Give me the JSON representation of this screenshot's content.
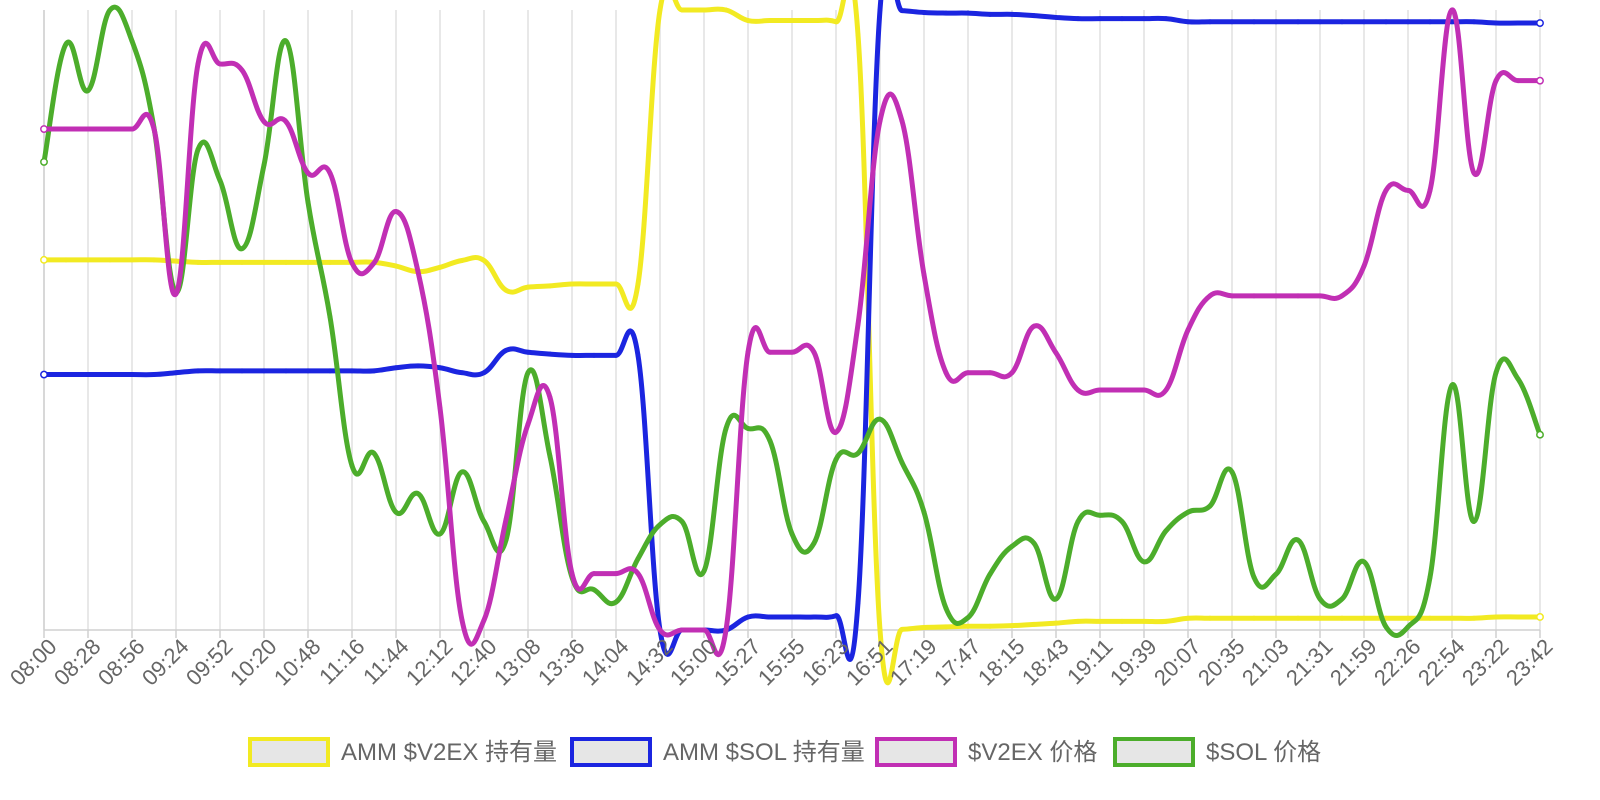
{
  "chart_data": {
    "type": "line",
    "title": "",
    "xlabel": "",
    "ylabel": "",
    "grid": true,
    "legend_position": "bottom",
    "x": [
      "08:00",
      "08:14",
      "08:28",
      "08:42",
      "08:56",
      "09:10",
      "09:24",
      "09:38",
      "09:52",
      "10:06",
      "10:20",
      "10:34",
      "10:48",
      "11:02",
      "11:16",
      "11:30",
      "11:44",
      "11:58",
      "12:12",
      "12:26",
      "12:40",
      "12:54",
      "13:08",
      "13:22",
      "13:36",
      "13:50",
      "14:04",
      "14:18",
      "14:32",
      "14:46",
      "15:00",
      "15:14",
      "15:27",
      "15:41",
      "15:55",
      "16:09",
      "16:23",
      "16:37",
      "16:51",
      "17:05",
      "17:19",
      "17:33",
      "17:47",
      "18:01",
      "18:15",
      "18:29",
      "18:43",
      "18:57",
      "19:11",
      "19:25",
      "19:39",
      "19:53",
      "20:07",
      "20:21",
      "20:35",
      "20:49",
      "21:03",
      "21:17",
      "21:31",
      "21:45",
      "21:59",
      "22:12",
      "22:26",
      "22:40",
      "22:54",
      "23:08",
      "23:22",
      "23:36",
      "23:42"
    ],
    "x_tick_labels": [
      "08:00",
      "08:28",
      "08:56",
      "09:24",
      "09:52",
      "10:20",
      "10:48",
      "11:16",
      "11:44",
      "12:12",
      "12:40",
      "13:08",
      "13:36",
      "14:04",
      "14:32",
      "15:00",
      "15:27",
      "15:55",
      "16:23",
      "16:51",
      "17:19",
      "17:47",
      "18:15",
      "18:43",
      "19:11",
      "19:39",
      "20:07",
      "20:35",
      "21:03",
      "21:31",
      "21:59",
      "22:26",
      "22:54",
      "23:22",
      "23:42"
    ],
    "ylim": [
      0,
      100
    ],
    "series": [
      {
        "name": "AMM $V2EX 持有量",
        "color": "#f2ea22",
        "values": [
          59.7,
          59.7,
          59.7,
          59.7,
          59.7,
          59.7,
          59.5,
          59.3,
          59.3,
          59.3,
          59.3,
          59.3,
          59.3,
          59.3,
          59.3,
          59.3,
          58.7,
          57.8,
          58.5,
          59.6,
          59.6,
          54.8,
          55.3,
          55.5,
          55.8,
          55.8,
          55.8,
          55.8,
          100,
          100,
          100,
          100,
          98.3,
          98.3,
          98.3,
          98.3,
          98.1,
          96.0,
          0,
          0.1,
          0.4,
          0.5,
          0.6,
          0.6,
          0.7,
          0.9,
          1.1,
          1.4,
          1.4,
          1.4,
          1.4,
          1.4,
          1.9,
          1.9,
          1.9,
          1.9,
          1.9,
          1.9,
          1.9,
          1.9,
          1.9,
          1.9,
          1.9,
          1.9,
          1.9,
          1.9,
          2.1,
          2.1,
          2.1
        ]
      },
      {
        "name": "AMM $SOL 持有量",
        "color": "#1b25e0",
        "values": [
          41.2,
          41.2,
          41.2,
          41.2,
          41.2,
          41.2,
          41.5,
          41.8,
          41.8,
          41.8,
          41.8,
          41.8,
          41.8,
          41.8,
          41.8,
          41.8,
          42.3,
          42.6,
          42.3,
          41.5,
          41.5,
          45.1,
          44.8,
          44.5,
          44.3,
          44.3,
          44.3,
          44.3,
          0,
          0,
          0,
          0,
          2.1,
          2.1,
          2.1,
          2.1,
          2.3,
          4.4,
          100,
          99.9,
          99.6,
          99.5,
          99.5,
          99.3,
          99.3,
          99.1,
          98.8,
          98.6,
          98.6,
          98.6,
          98.6,
          98.6,
          98.1,
          98.1,
          98.1,
          98.1,
          98.1,
          98.1,
          98.1,
          98.1,
          98.1,
          98.1,
          98.1,
          98.1,
          98.1,
          98.1,
          97.9,
          97.9,
          97.9
        ]
      },
      {
        "name": "$V2EX 价格",
        "color": "#c12fb4",
        "values": [
          80.8,
          80.8,
          80.8,
          80.8,
          80.8,
          80.8,
          54.2,
          91.3,
          91.3,
          90.3,
          82.0,
          82.0,
          73.7,
          73.7,
          59.2,
          59.2,
          67.5,
          57.8,
          35.8,
          1.6,
          1.6,
          17.8,
          33.2,
          37.5,
          9.1,
          9.1,
          9.1,
          9.1,
          0,
          0,
          0,
          0,
          44.8,
          44.8,
          44.8,
          44.8,
          31.9,
          49.3,
          82.1,
          82.1,
          57.3,
          41.5,
          41.5,
          41.5,
          41.5,
          49.0,
          44.7,
          38.7,
          38.7,
          38.7,
          38.7,
          38.7,
          48.4,
          53.9,
          53.9,
          53.9,
          53.9,
          53.9,
          53.9,
          53.9,
          58.7,
          70.9,
          70.9,
          70.9,
          100,
          73.7,
          88.6,
          88.6,
          88.6
        ]
      },
      {
        "name": "$SOL 价格",
        "color": "#4cad2b",
        "values": [
          75.5,
          94.5,
          87.0,
          100,
          95.0,
          81.0,
          54.5,
          77.5,
          72.5,
          61.5,
          75.0,
          95.0,
          69.0,
          50.5,
          26.5,
          28.5,
          19.0,
          22.0,
          15.5,
          25.5,
          17.5,
          14.5,
          41.5,
          28.0,
          8.5,
          6.5,
          4.5,
          11.5,
          17.0,
          17.5,
          9.5,
          32.5,
          32.5,
          30.5,
          15.5,
          14.0,
          27.5,
          28.5,
          34.0,
          27.0,
          19.0,
          3.5,
          2.0,
          9.0,
          13.5,
          14.0,
          5.0,
          17.5,
          18.5,
          17.5,
          11.0,
          16.0,
          19.0,
          20.0,
          25.5,
          8.5,
          9.0,
          14.5,
          5.0,
          5.0,
          11.0,
          0.5,
          0.5,
          8.5,
          39.5,
          17.5,
          41.5,
          40.5,
          31.5
        ]
      }
    ]
  }
}
